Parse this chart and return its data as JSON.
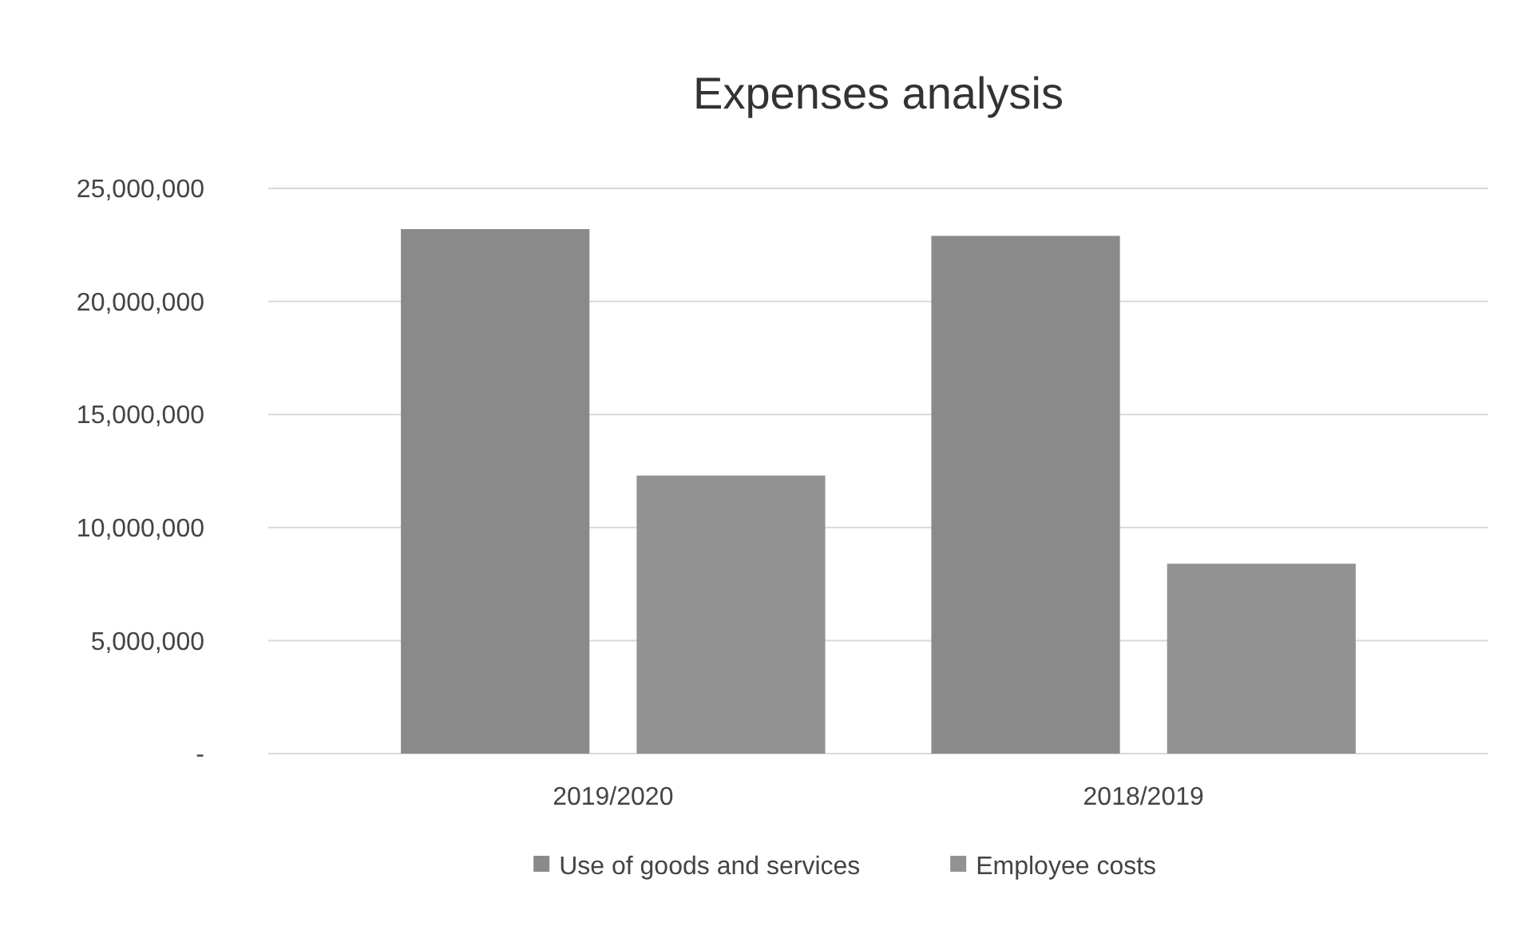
{
  "chart_data": {
    "type": "bar",
    "title": "Expenses analysis",
    "categories": [
      "2019/2020",
      "2018/2019"
    ],
    "series": [
      {
        "name": "Use of goods and services",
        "color": "#8a8a8a",
        "values": [
          23200000,
          22900000
        ]
      },
      {
        "name": "Employee costs",
        "color": "#929292",
        "values": [
          12300000,
          8400000
        ]
      }
    ],
    "ylim": [
      0,
      25000000
    ],
    "yticks": [
      {
        "value": 0,
        "label": "-"
      },
      {
        "value": 5000000,
        "label": "5,000,000"
      },
      {
        "value": 10000000,
        "label": "10,000,000"
      },
      {
        "value": 15000000,
        "label": "15,000,000"
      },
      {
        "value": 20000000,
        "label": "20,000,000"
      },
      {
        "value": 25000000,
        "label": "25,000,000"
      }
    ],
    "grid": "y",
    "legend": "bottom"
  }
}
